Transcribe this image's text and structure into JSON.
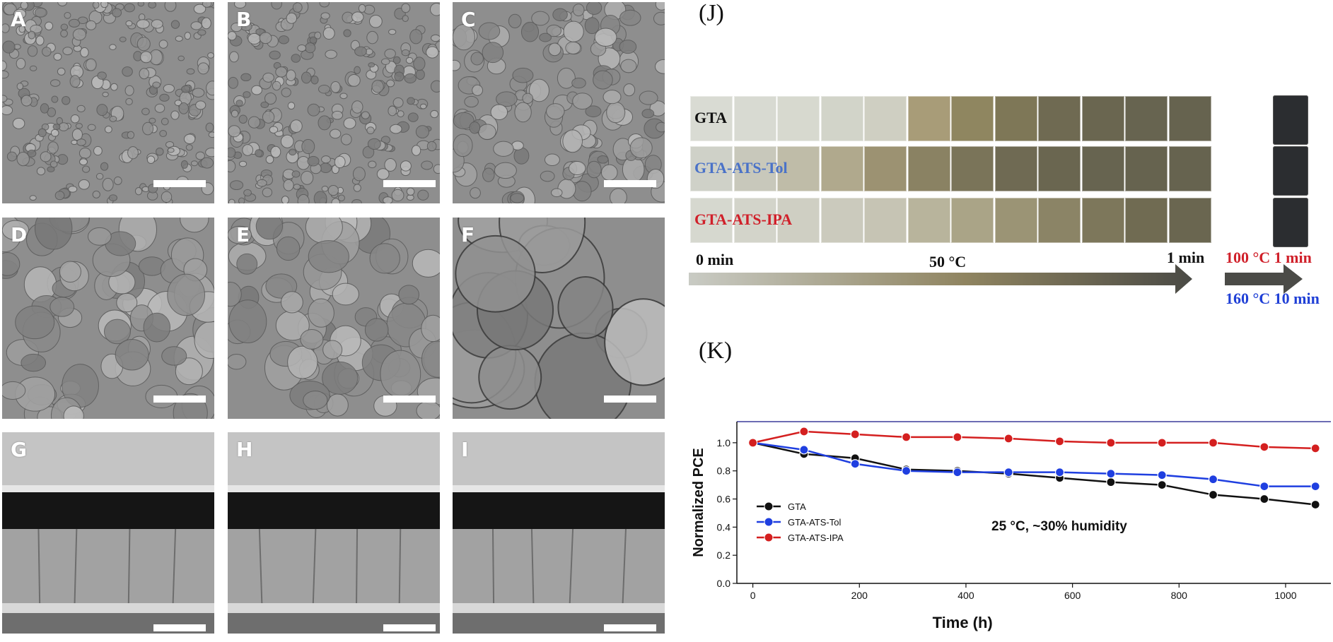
{
  "sem_panels": [
    {
      "label": "A"
    },
    {
      "label": "B"
    },
    {
      "label": "C"
    },
    {
      "label": "D"
    },
    {
      "label": "E"
    },
    {
      "label": "F"
    },
    {
      "label": "G"
    },
    {
      "label": "H"
    },
    {
      "label": "I"
    }
  ],
  "panel_j": {
    "label": "(J)",
    "rows": [
      {
        "name": "GTA",
        "color": "#111111"
      },
      {
        "name": "GTA-ATS-Tol",
        "color": "#4a72c8"
      },
      {
        "name": "GTA-ATS-IPA",
        "color": "#d0202a"
      }
    ],
    "start_time": "0 min",
    "temperature": "50 °C",
    "end_time": "1 min",
    "anneal_1": "100 °C 1 min",
    "anneal_2": "160 °C 10 min",
    "anneal_1_color": "#d0202a",
    "anneal_2_color": "#1f3fd6"
  },
  "panel_k": {
    "label": "(K)"
  },
  "chart_data": {
    "type": "line",
    "xlabel": "Time (h)",
    "ylabel": "Normalized PCE",
    "xlim": [
      -30,
      1085
    ],
    "ylim": [
      0.0,
      1.15
    ],
    "xticks": [
      0,
      200,
      400,
      600,
      800,
      1000
    ],
    "yticks": [
      0.0,
      0.2,
      0.4,
      0.6,
      0.8,
      1.0
    ],
    "annotation": "25 °C, ~30% humidity",
    "legend_position": "middle-left",
    "x": [
      0,
      96,
      192,
      288,
      384,
      480,
      576,
      672,
      768,
      864,
      960,
      1056
    ],
    "series": [
      {
        "name": "GTA",
        "color": "#111111",
        "values": [
          1.0,
          0.92,
          0.89,
          0.81,
          0.8,
          0.78,
          0.75,
          0.72,
          0.7,
          0.63,
          0.6,
          0.56
        ]
      },
      {
        "name": "GTA-ATS-Tol",
        "color": "#1f3fe0",
        "values": [
          1.0,
          0.95,
          0.85,
          0.8,
          0.79,
          0.79,
          0.79,
          0.78,
          0.77,
          0.74,
          0.69,
          0.69
        ]
      },
      {
        "name": "GTA-ATS-IPA",
        "color": "#d41f1f",
        "values": [
          1.0,
          1.08,
          1.06,
          1.04,
          1.04,
          1.03,
          1.01,
          1.0,
          1.0,
          1.0,
          0.97,
          0.96
        ]
      }
    ]
  }
}
